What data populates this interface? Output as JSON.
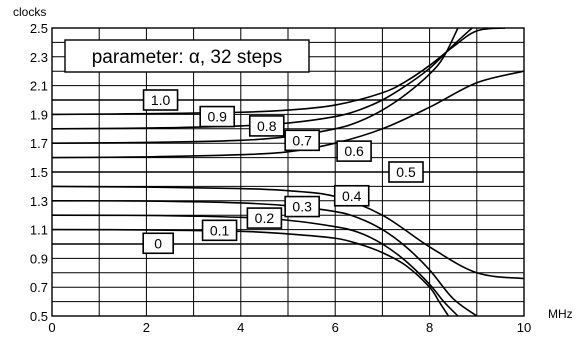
{
  "chart_data": {
    "type": "line",
    "ylabel": "clocks",
    "xlabel": "MHz",
    "annotation": "parameter: α, 32 steps",
    "xlim": [
      0,
      10
    ],
    "ylim": [
      0.5,
      2.5
    ],
    "xticks": [
      "0",
      "2",
      "4",
      "6",
      "8",
      "10"
    ],
    "yticks": [
      "0.5",
      "0.7",
      "0.9",
      "1.1",
      "1.3",
      "1.5",
      "1.7",
      "1.9",
      "2.1",
      "2.3",
      "2.5"
    ],
    "grid": true,
    "series": [
      {
        "name": "1.0",
        "x": [
          0,
          10
        ],
        "y": [
          2.0,
          2.0
        ]
      },
      {
        "name": "0.9",
        "x": [
          0,
          2,
          4,
          5,
          6,
          7,
          7.5,
          8,
          8.5,
          9,
          9.6
        ],
        "y": [
          1.9,
          1.905,
          1.915,
          1.93,
          1.965,
          2.05,
          2.13,
          2.24,
          2.37,
          2.48,
          2.5
        ]
      },
      {
        "name": "0.8",
        "x": [
          0,
          2,
          4,
          5,
          6,
          6.5,
          7,
          7.5,
          8,
          8.5,
          8.9
        ],
        "y": [
          1.8,
          1.805,
          1.82,
          1.84,
          1.885,
          1.93,
          2.0,
          2.1,
          2.22,
          2.38,
          2.5
        ]
      },
      {
        "name": "0.7",
        "x": [
          0,
          2,
          4,
          5,
          6,
          6.5,
          7,
          7.5,
          8,
          8.3,
          8.6
        ],
        "y": [
          1.7,
          1.705,
          1.72,
          1.745,
          1.8,
          1.85,
          1.93,
          2.04,
          2.18,
          2.3,
          2.5
        ]
      },
      {
        "name": "0.6",
        "x": [
          0,
          2,
          4,
          5,
          6,
          7,
          8,
          9,
          10
        ],
        "y": [
          1.6,
          1.605,
          1.62,
          1.64,
          1.7,
          1.8,
          1.95,
          2.12,
          2.2
        ]
      },
      {
        "name": "0.5",
        "x": [
          0,
          10
        ],
        "y": [
          1.5,
          1.5
        ]
      },
      {
        "name": "0.4",
        "x": [
          0,
          2,
          4,
          5,
          6,
          7,
          8,
          9,
          10
        ],
        "y": [
          1.4,
          1.395,
          1.385,
          1.37,
          1.33,
          1.2,
          0.98,
          0.8,
          0.76
        ]
      },
      {
        "name": "0.3",
        "x": [
          0,
          2,
          4,
          5,
          6,
          6.5,
          7,
          7.5,
          8,
          8.5,
          9
        ],
        "y": [
          1.3,
          1.298,
          1.285,
          1.265,
          1.225,
          1.18,
          1.1,
          0.98,
          0.82,
          0.62,
          0.5
        ]
      },
      {
        "name": "0.2",
        "x": [
          0,
          2,
          4,
          5,
          6,
          6.5,
          7,
          7.5,
          8,
          8.3,
          8.6
        ],
        "y": [
          1.2,
          1.198,
          1.185,
          1.165,
          1.12,
          1.08,
          1.0,
          0.88,
          0.72,
          0.6,
          0.5
        ]
      },
      {
        "name": "0.1",
        "x": [
          0,
          2,
          4,
          5,
          6,
          6.5,
          7,
          7.5,
          8,
          8.2,
          8.4
        ],
        "y": [
          1.1,
          1.098,
          1.088,
          1.07,
          1.04,
          1.0,
          0.94,
          0.85,
          0.7,
          0.6,
          0.5
        ]
      },
      {
        "name": "0",
        "x": [
          0,
          10
        ],
        "y": [
          1.0,
          1.0
        ]
      }
    ],
    "curve_labels": [
      {
        "text": "1.0",
        "x": 2.3,
        "y": 2.0
      },
      {
        "text": "0.9",
        "x": 3.5,
        "y": 1.885
      },
      {
        "text": "0.8",
        "x": 4.55,
        "y": 1.82
      },
      {
        "text": "0.7",
        "x": 5.3,
        "y": 1.72
      },
      {
        "text": "0.6",
        "x": 6.4,
        "y": 1.645
      },
      {
        "text": "0.5",
        "x": 7.5,
        "y": 1.5
      },
      {
        "text": "0.4",
        "x": 6.35,
        "y": 1.335
      },
      {
        "text": "0.3",
        "x": 5.3,
        "y": 1.26
      },
      {
        "text": "0.2",
        "x": 4.5,
        "y": 1.18
      },
      {
        "text": "0.1",
        "x": 3.55,
        "y": 1.095
      },
      {
        "text": "0",
        "x": 2.25,
        "y": 1.005
      }
    ]
  }
}
